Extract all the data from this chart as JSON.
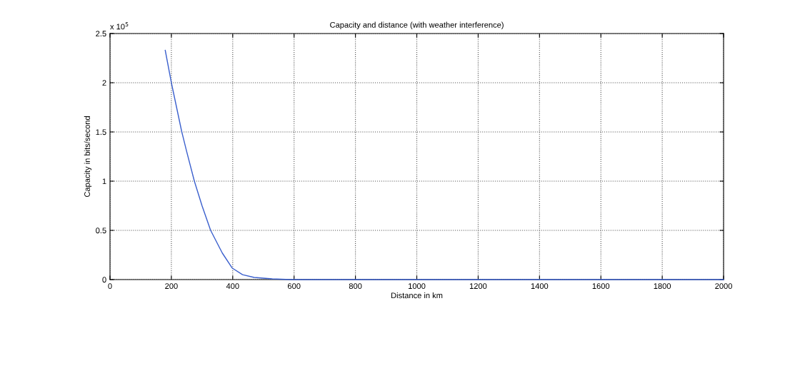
{
  "chart_data": {
    "type": "line",
    "title": "Capacity and distance (with weather interference)",
    "xlabel": "Distance in km",
    "ylabel": "Capacity in bits/second",
    "annotations": [
      "x 10$^{5}$"
    ],
    "x": [
      180,
      200,
      234,
      250,
      275,
      300,
      328,
      366,
      398,
      432,
      470,
      529,
      588,
      800,
      1000,
      1500,
      2000
    ],
    "series": [
      {
        "color": "#3a5fcd",
        "values": [
          2.33,
          2.0,
          1.5,
          1.3,
          1.0,
          0.75,
          0.5,
          0.27,
          0.118,
          0.05,
          0.022,
          0.007,
          0,
          0,
          0,
          0,
          0
        ]
      }
    ],
    "xlim": [
      0,
      2000
    ],
    "xticks": [
      0,
      200,
      400,
      600,
      800,
      1000,
      1200,
      1400,
      1600,
      1800,
      2000
    ],
    "ylim": [
      0,
      2.5
    ],
    "yticks": [
      0,
      0.5,
      1,
      1.5,
      2,
      2.5
    ],
    "grid": true,
    "marker": "none",
    "line_style": "solid"
  }
}
